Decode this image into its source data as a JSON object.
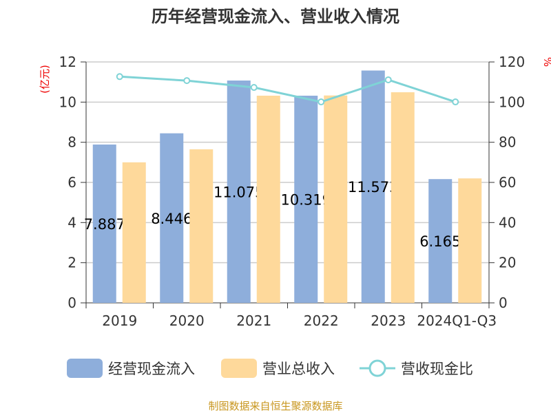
{
  "chart_data": {
    "type": "bar",
    "title": "历年经营现金流入、营业收入情况",
    "categories": [
      "2019",
      "2020",
      "2021",
      "2022",
      "2023",
      "2024Q1-Q3"
    ],
    "left_axis": {
      "label": "(亿元)",
      "range": [
        0,
        12
      ],
      "ticks": [
        "0",
        "2",
        "4",
        "6",
        "8",
        "10",
        "12"
      ]
    },
    "right_axis": {
      "label": "%",
      "range": [
        0,
        120
      ],
      "ticks": [
        "0",
        "20",
        "40",
        "60",
        "80",
        "100",
        "120"
      ]
    },
    "grid": true,
    "legend_position": "bottom",
    "series": [
      {
        "name": "经营现金流入",
        "type": "bar",
        "axis": "left",
        "color": "#8eaedb",
        "values": [
          7.887,
          8.446,
          11.075,
          10.319,
          11.573,
          6.165
        ],
        "labels": [
          "7.887",
          "8.446",
          "11.075",
          "10.319",
          "11.573",
          "6.165"
        ]
      },
      {
        "name": "营业总收入",
        "type": "bar",
        "axis": "left",
        "color": "#fed99b",
        "values": [
          7.0,
          7.65,
          10.32,
          10.33,
          10.49,
          6.2
        ]
      },
      {
        "name": "营收现金比",
        "type": "line",
        "axis": "right",
        "color": "#7fd3d6",
        "values": [
          112.7,
          110.7,
          107.3,
          100.1,
          111.1,
          100.1
        ]
      }
    ]
  },
  "source": "制图数据来自恒生聚源数据库"
}
